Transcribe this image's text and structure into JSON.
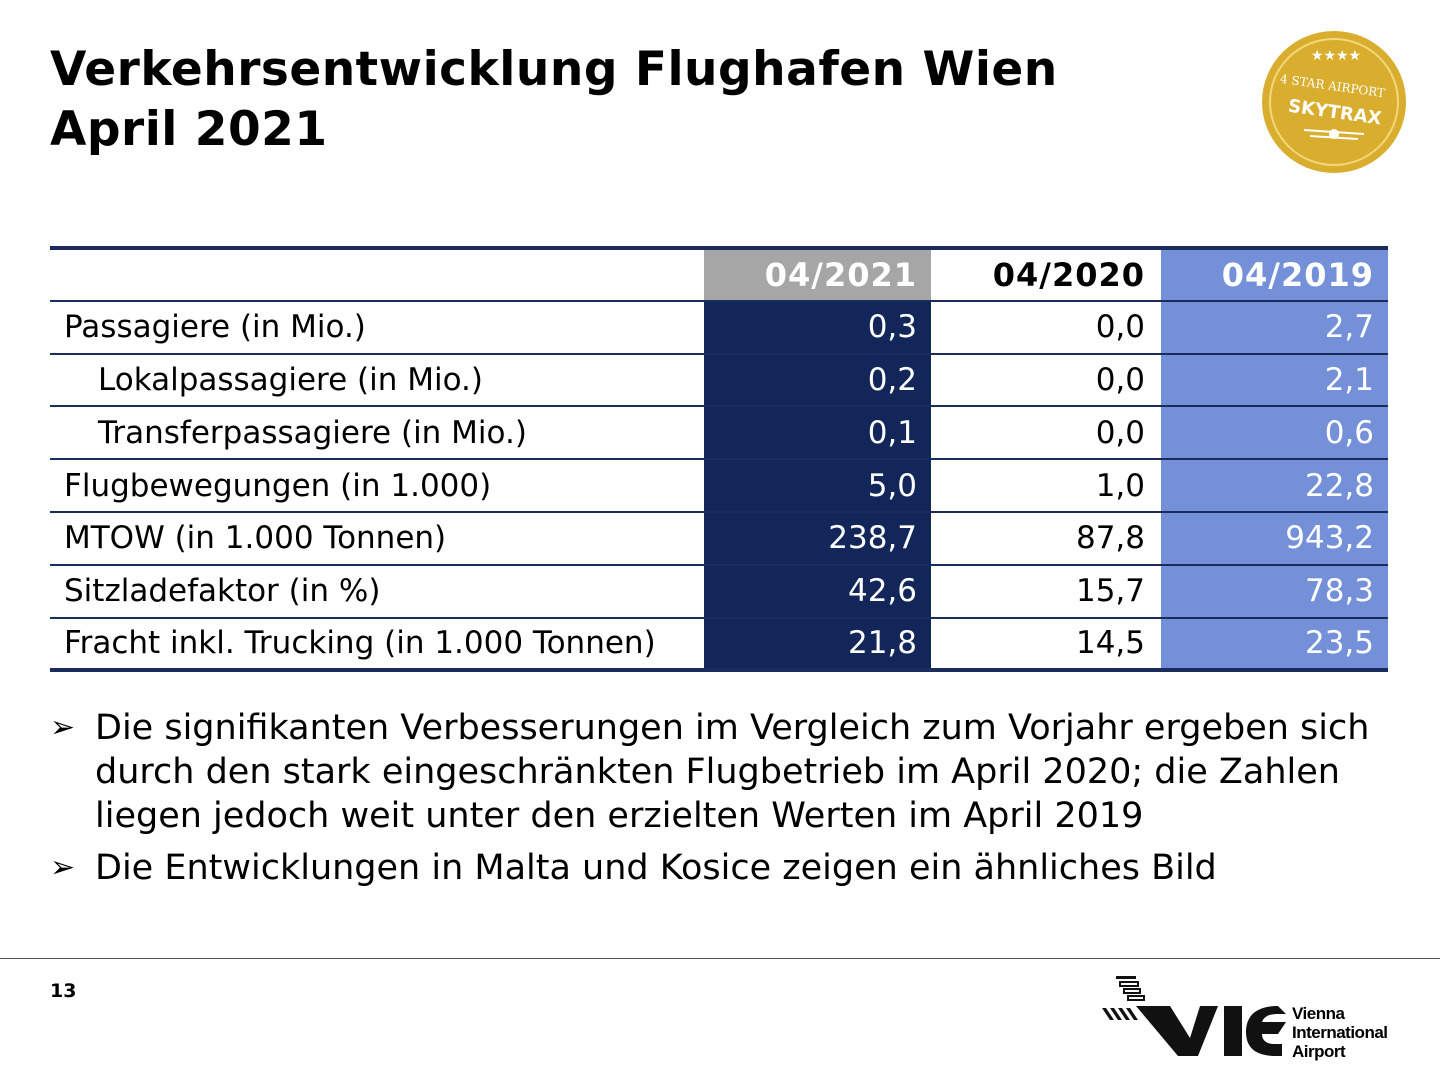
{
  "title": {
    "line1": "Verkehrsentwicklung Flughafen Wien",
    "line2": "April 2021"
  },
  "badge": {
    "text_top": "4 STAR AIRPORT",
    "text_main": "SKYTRAX",
    "color": "#d4a82a"
  },
  "table": {
    "columns": [
      "04/2021",
      "04/2020",
      "04/2019"
    ],
    "rows": [
      {
        "label": "Passagiere (in Mio.)",
        "values": [
          "0,3",
          "0,0",
          "2,7"
        ]
      },
      {
        "label": "Lokalpassagiere (in Mio.)",
        "values": [
          "0,2",
          "0,0",
          "2,1"
        ]
      },
      {
        "label": "Transferpassagiere (in Mio.)",
        "values": [
          "0,1",
          "0,0",
          "0,6"
        ]
      },
      {
        "label": "Flugbewegungen (in 1.000)",
        "values": [
          "5,0",
          "1,0",
          "22,8"
        ]
      },
      {
        "label": "MTOW (in 1.000 Tonnen)",
        "values": [
          "238,7",
          "87,8",
          "943,2"
        ]
      },
      {
        "label": "Sitzladefaktor (in %)",
        "values": [
          "42,6",
          "15,7",
          "78,3"
        ]
      },
      {
        "label": "Fracht inkl. Trucking (in 1.000 Tonnen)",
        "values": [
          "21,8",
          "14,5",
          "23,5"
        ]
      }
    ],
    "colors": {
      "col2021": "#13265a",
      "col2021_header": "#a6a6a6",
      "col2019": "#7390d8",
      "border": "#1a2c5c"
    }
  },
  "bullets": [
    "Die signifikanten Verbesserungen im Vergleich zum Vorjahr ergeben sich durch den stark eingeschränkten Flugbetrieb im April 2020; die Zahlen liegen jedoch weit unter den erzielten Werten im April 2019",
    "Die Entwicklungen in Malta und Kosice zeigen ein ähnliches Bild"
  ],
  "footer": {
    "page_number": "13",
    "logo": {
      "mark": "VIE",
      "line1": "Vienna",
      "line2": "International",
      "line3": "Airport"
    }
  }
}
